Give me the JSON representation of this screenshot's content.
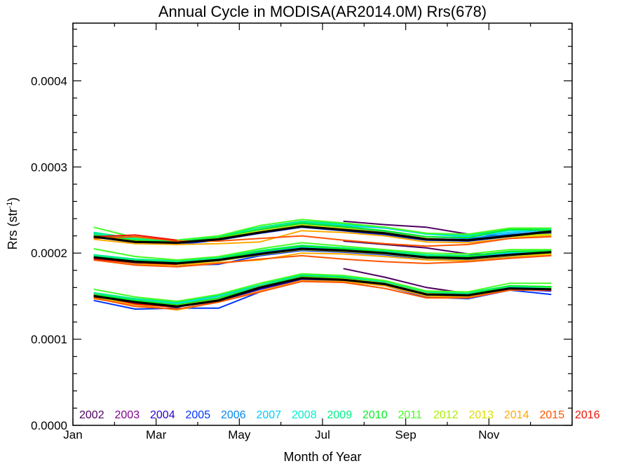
{
  "chart_data": {
    "type": "line",
    "title": "Annual Cycle in MODISA(AR2014.0M) Rrs(678)",
    "xlabel": "Month of Year",
    "ylabel": "Rrs (str",
    "ylabel_sup": "-1",
    "ylabel_close": ")",
    "xlim": [
      1,
      13
    ],
    "ylim": [
      0.0,
      0.000467
    ],
    "x_ticks": [
      {
        "value": 1,
        "label": "Jan"
      },
      {
        "value": 3,
        "label": "Mar"
      },
      {
        "value": 5,
        "label": "May"
      },
      {
        "value": 7,
        "label": "Jul"
      },
      {
        "value": 9,
        "label": "Sep"
      },
      {
        "value": 11,
        "label": "Nov"
      }
    ],
    "y_ticks": [
      {
        "value": 0.0,
        "label": "0.0000"
      },
      {
        "value": 0.0001,
        "label": "0.0001"
      },
      {
        "value": 0.0002,
        "label": "0.0002"
      },
      {
        "value": 0.0003,
        "label": "0.0003"
      },
      {
        "value": 0.0004,
        "label": "0.0004"
      }
    ],
    "x": [
      1.5,
      2.5,
      3.5,
      4.5,
      5.5,
      6.5,
      7.5,
      8.5,
      9.5,
      10.5,
      11.5,
      12.5
    ],
    "climatology": {
      "color": "#000000",
      "upper": [
        0.000219,
        0.000213,
        0.000212,
        0.000216,
        0.000224,
        0.000231,
        0.000227,
        0.000223,
        0.000216,
        0.000215,
        0.00022,
        0.000225
      ],
      "middle": [
        0.000195,
        0.00019,
        0.000188,
        0.000192,
        0.000199,
        0.000205,
        0.000203,
        0.0002,
        0.000195,
        0.000194,
        0.000198,
        0.000201
      ],
      "lower": [
        0.00015,
        0.000143,
        0.000138,
        0.000145,
        0.00016,
        0.000171,
        0.000169,
        0.000164,
        0.000152,
        0.000151,
        0.000159,
        0.000158
      ]
    },
    "series": [
      {
        "name": "2002",
        "color": "#4d0060",
        "start": 6,
        "upper": [
          0.000237,
          0.000233,
          0.00023,
          0.000222,
          0.00022,
          0.000225
        ],
        "middle": [
          0.000214,
          0.00021,
          0.000206,
          0.000199,
          0.000198,
          0.000202
        ],
        "lower": [
          0.000182,
          0.000172,
          0.00016,
          0.000153,
          0.000158,
          0.00016
        ]
      },
      {
        "name": "2003",
        "color": "#800090",
        "start": 0,
        "upper": [
          0.000223,
          0.000214,
          0.000211,
          0.000217,
          0.000225,
          0.000232,
          0.000228,
          0.000224,
          0.000216,
          0.000214,
          0.000221,
          0.000226
        ],
        "middle": [
          0.000197,
          0.000191,
          0.000188,
          0.000191,
          0.000198,
          0.000204,
          0.000203,
          0.000199,
          0.000194,
          0.000193,
          0.000198,
          0.000201
        ],
        "lower": [
          0.000152,
          0.000145,
          0.00014,
          0.000146,
          0.000158,
          0.000169,
          0.000168,
          0.000163,
          0.000151,
          0.00015,
          0.000158,
          0.000157
        ]
      },
      {
        "name": "2004",
        "color": "#2a00cc",
        "start": 0,
        "upper": [
          0.000221,
          0.000214,
          0.000212,
          0.000217,
          0.000224,
          0.000231,
          0.000227,
          0.000222,
          0.000216,
          0.000215,
          0.00022,
          0.000223
        ],
        "middle": [
          0.000195,
          0.00019,
          0.000188,
          0.000192,
          0.000199,
          0.000204,
          0.000202,
          0.000199,
          0.000194,
          0.000193,
          0.000197,
          0.0002
        ],
        "lower": [
          0.000149,
          0.000142,
          0.000138,
          0.000144,
          0.000158,
          0.00017,
          0.000168,
          0.000163,
          0.000151,
          0.000149,
          0.000158,
          0.000156
        ]
      },
      {
        "name": "2005",
        "color": "#0033ff",
        "start": 0,
        "upper": [
          0.000219,
          0.000212,
          0.00021,
          0.000215,
          0.000223,
          0.00023,
          0.000226,
          0.000221,
          0.000215,
          0.000214,
          0.000219,
          0.000222
        ],
        "middle": [
          0.000193,
          0.000188,
          0.000186,
          0.000187,
          0.000197,
          0.000203,
          0.000201,
          0.000198,
          0.000193,
          0.000192,
          0.000196,
          0.000198
        ],
        "lower": [
          0.000145,
          0.000135,
          0.000136,
          0.000136,
          0.000155,
          0.000168,
          0.000167,
          0.000162,
          0.000149,
          0.000147,
          0.000157,
          0.000152
        ]
      },
      {
        "name": "2006",
        "color": "#0088ee",
        "start": 0,
        "upper": [
          0.000224,
          0.000216,
          0.000213,
          0.000218,
          0.000227,
          0.000234,
          0.00023,
          0.000225,
          0.000219,
          0.000217,
          0.000222,
          0.000225
        ],
        "middle": [
          0.000198,
          0.000192,
          0.00019,
          0.000193,
          0.000201,
          0.000206,
          0.000204,
          0.000201,
          0.000196,
          0.000195,
          0.000199,
          0.0002
        ],
        "lower": [
          0.000151,
          0.000144,
          0.00014,
          0.000147,
          0.00016,
          0.000172,
          0.00017,
          0.000165,
          0.000153,
          0.000151,
          0.00016,
          0.000158
        ]
      },
      {
        "name": "2007",
        "color": "#00ccff",
        "start": 0,
        "upper": [
          0.000222,
          0.000215,
          0.000212,
          0.000218,
          0.000228,
          0.000235,
          0.000232,
          0.000229,
          0.000222,
          0.000219,
          0.000224,
          0.000227
        ],
        "middle": [
          0.000196,
          0.000191,
          0.000189,
          0.000193,
          0.000202,
          0.000207,
          0.000205,
          0.000202,
          0.000197,
          0.000195,
          0.0002,
          0.000201
        ],
        "lower": [
          0.00015,
          0.000146,
          0.000141,
          0.00015,
          0.000162,
          0.000174,
          0.000172,
          0.000166,
          0.000153,
          0.000152,
          0.00016,
          0.000159
        ]
      },
      {
        "name": "2008",
        "color": "#00eecc",
        "start": 0,
        "upper": [
          0.000223,
          0.000216,
          0.000214,
          0.000219,
          0.000228,
          0.000236,
          0.000233,
          0.00023,
          0.000222,
          0.00022,
          0.000226,
          0.000228
        ],
        "middle": [
          0.000197,
          0.000192,
          0.00019,
          0.000194,
          0.000202,
          0.000208,
          0.000206,
          0.000203,
          0.000198,
          0.000197,
          0.000201,
          0.000202
        ],
        "lower": [
          0.000152,
          0.000147,
          0.000142,
          0.000151,
          0.000163,
          0.000175,
          0.000173,
          0.000167,
          0.000154,
          0.000153,
          0.000161,
          0.00016
        ]
      },
      {
        "name": "2009",
        "color": "#00ee88",
        "start": 0,
        "upper": [
          0.000224,
          0.000217,
          0.000215,
          0.00022,
          0.00023,
          0.000237,
          0.000234,
          0.00023,
          0.000223,
          0.000221,
          0.000227,
          0.000228
        ],
        "middle": [
          0.000198,
          0.000193,
          0.000191,
          0.000195,
          0.000203,
          0.000209,
          0.000206,
          0.000203,
          0.000198,
          0.000197,
          0.000202,
          0.000203
        ],
        "lower": [
          0.000154,
          0.000147,
          0.000143,
          0.000151,
          0.000163,
          0.000175,
          0.000173,
          0.000167,
          0.000155,
          0.000154,
          0.000162,
          0.000161
        ]
      },
      {
        "name": "2010",
        "color": "#00ee22",
        "start": 0,
        "upper": [
          0.000221,
          0.000215,
          0.000213,
          0.000218,
          0.000228,
          0.000235,
          0.000231,
          0.000226,
          0.000219,
          0.000218,
          0.000228,
          0.000226
        ],
        "middle": [
          0.000196,
          0.000191,
          0.000189,
          0.000193,
          0.000202,
          0.000208,
          0.000205,
          0.000201,
          0.000196,
          0.000196,
          0.000202,
          0.000202
        ],
        "lower": [
          0.000152,
          0.000145,
          0.00014,
          0.000148,
          0.000161,
          0.000173,
          0.000171,
          0.000165,
          0.000153,
          0.000152,
          0.000162,
          0.000161
        ]
      },
      {
        "name": "2011",
        "color": "#44ff22",
        "start": 0,
        "upper": [
          0.00023,
          0.000218,
          0.000215,
          0.00022,
          0.000232,
          0.000239,
          0.000235,
          0.00023,
          0.000223,
          0.000222,
          0.000229,
          0.000229
        ],
        "middle": [
          0.000205,
          0.000196,
          0.000192,
          0.000196,
          0.000205,
          0.000212,
          0.000208,
          0.000204,
          0.0002,
          0.000199,
          0.000204,
          0.000204
        ],
        "lower": [
          0.000158,
          0.000149,
          0.000144,
          0.000152,
          0.000165,
          0.000176,
          0.000174,
          0.000168,
          0.000156,
          0.000155,
          0.000165,
          0.000165
        ]
      },
      {
        "name": "2012",
        "color": "#aaee00",
        "start": 0,
        "upper": [
          0.00022,
          0.000214,
          0.000212,
          0.000217,
          0.000226,
          0.000233,
          0.000229,
          0.000224,
          0.000217,
          0.000215,
          0.00022,
          0.000222
        ],
        "middle": [
          0.000195,
          0.00019,
          0.000188,
          0.000192,
          0.000199,
          0.000205,
          0.000203,
          0.0002,
          0.000195,
          0.000194,
          0.000198,
          0.0002
        ],
        "lower": [
          0.00015,
          0.000143,
          0.000139,
          0.000146,
          0.00016,
          0.000172,
          0.00017,
          0.000165,
          0.000153,
          0.000151,
          0.000159,
          0.000159
        ]
      },
      {
        "name": "2013",
        "color": "#dddd00",
        "start": 0,
        "upper": [
          0.000219,
          0.000213,
          0.000212,
          0.000216,
          0.000225,
          0.000232,
          0.000228,
          0.000223,
          0.000216,
          0.000215,
          0.000219,
          0.000221
        ],
        "middle": [
          0.000194,
          0.000189,
          0.000187,
          0.000191,
          0.000198,
          0.000204,
          0.000202,
          0.000199,
          0.000194,
          0.000193,
          0.000197,
          0.000199
        ],
        "lower": [
          0.000148,
          0.000142,
          0.000138,
          0.000145,
          0.000161,
          0.000171,
          0.000169,
          0.000164,
          0.000152,
          0.00015,
          0.000158,
          0.000158
        ]
      },
      {
        "name": "2014",
        "color": "#ffaa00",
        "start": 0,
        "upper": [
          0.000216,
          0.000211,
          0.00021,
          0.000211,
          0.000213,
          0.000226,
          0.000224,
          0.00022,
          0.000213,
          0.000212,
          0.000217,
          0.00022
        ],
        "middle": [
          0.000192,
          0.000187,
          0.000186,
          0.000189,
          0.000192,
          0.0002,
          0.000199,
          0.000196,
          0.000192,
          0.000191,
          0.000195,
          0.000198
        ],
        "lower": [
          0.000147,
          0.00014,
          0.000134,
          0.000143,
          0.000156,
          0.000168,
          0.000167,
          0.000162,
          0.00015,
          0.000149,
          0.000157,
          0.000157
        ]
      },
      {
        "name": "2015",
        "color": "#ff5500",
        "start": 0,
        "upper": [
          0.000217,
          0.000219,
          0.000214,
          0.000214,
          0.000217,
          0.00022,
          0.000215,
          0.000211,
          0.000208,
          0.00021,
          0.000217,
          0.000219
        ],
        "middle": [
          0.000192,
          0.000186,
          0.000184,
          0.000188,
          0.000193,
          0.000197,
          0.000193,
          0.00019,
          0.000188,
          0.00019,
          0.000194,
          0.000197
        ],
        "lower": [
          0.000148,
          0.000138,
          0.000135,
          0.000143,
          0.000155,
          0.000167,
          0.000166,
          0.000159,
          0.000148,
          0.000148,
          0.000157,
          0.000157
        ]
      },
      {
        "name": "2016",
        "color": "#ee1100",
        "start": 0,
        "upper": [
          0.000219,
          0.000221,
          0.000215
        ],
        "middle": [
          0.000193,
          0.000189,
          0.000187
        ],
        "lower": [
          0.000151,
          0.000141,
          0.000137
        ]
      }
    ]
  }
}
